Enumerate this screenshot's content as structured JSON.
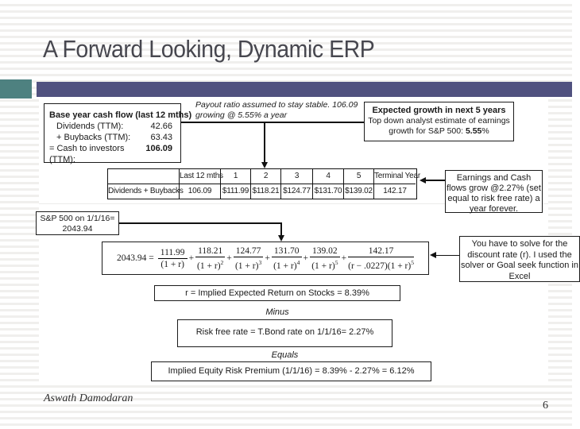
{
  "slide": {
    "title": "A Forward Looking, Dynamic ERP",
    "footer": "Aswath Damodaran",
    "page_number": "6"
  },
  "colors": {
    "accent_teal": "#4e8180",
    "accent_purple": "#50517f",
    "title_text": "#47474f"
  },
  "diagram": {
    "base_box": {
      "title": "Base year cash flow  (last 12 mths)",
      "rows": [
        {
          "label": "Dividends (TTM):",
          "value": "42.66",
          "indent": true
        },
        {
          "label": "+ Buybacks (TTM):",
          "value": "63.43",
          "indent": true
        },
        {
          "label": "= Cash to investors (TTM):",
          "value": "106.09",
          "indent": false
        }
      ]
    },
    "payout_note": "Payout ratio assumed to stay stable. 106.09 growing @ 5.55% a year",
    "growth_box": {
      "title": "Expected growth in next 5 years",
      "line2": "Top down analyst estimate of earnings",
      "line3_prefix": "growth for S&P 500: ",
      "line3_value": "5.55",
      "line3_suffix": "%"
    },
    "cashflow_table": {
      "headers": [
        "",
        "Last 12 mths",
        "1",
        "2",
        "3",
        "4",
        "5",
        "Terminal Year"
      ],
      "row_label": "Dividends + Buybacks",
      "values": [
        "106.09",
        "$111.99",
        "$118.21",
        "$124.77",
        "$131.70",
        "$139.02",
        "142.17"
      ]
    },
    "terminal_box": "Earnings and Cash flows grow @2.27% (set equal to risk free rate) a year forever.",
    "sp_box": {
      "line1": "S&P 500 on 1/1/16=",
      "line2": "2043.94"
    },
    "equation": {
      "lhs": "2043.94 =",
      "plus": "+",
      "terms": [
        {
          "num": "111.99",
          "den": "(1 + r)",
          "exp": ""
        },
        {
          "num": "118.21",
          "den": "(1 + r)",
          "exp": "2"
        },
        {
          "num": "124.77",
          "den": "(1 + r)",
          "exp": "3"
        },
        {
          "num": "131.70",
          "den": "(1 + r)",
          "exp": "4"
        },
        {
          "num": "139.02",
          "den": "(1 + r)",
          "exp": "5"
        },
        {
          "num": "142.17",
          "den": "(r − .0227)(1 + r)",
          "exp": "5"
        }
      ]
    },
    "solver_box": "You have to solve for the discount rate (r). I used the solver or Goal seek function in Excel",
    "return_box": "r = Implied Expected Return on Stocks = 8.39%",
    "minus_label": "Minus",
    "riskfree_box": "Risk free rate = T.Bond rate on 1/1/16= 2.27%",
    "equals_label": "Equals",
    "erp_box": "Implied Equity Risk Premium (1/1/16) = 8.39% - 2.27% = 6.12%"
  }
}
